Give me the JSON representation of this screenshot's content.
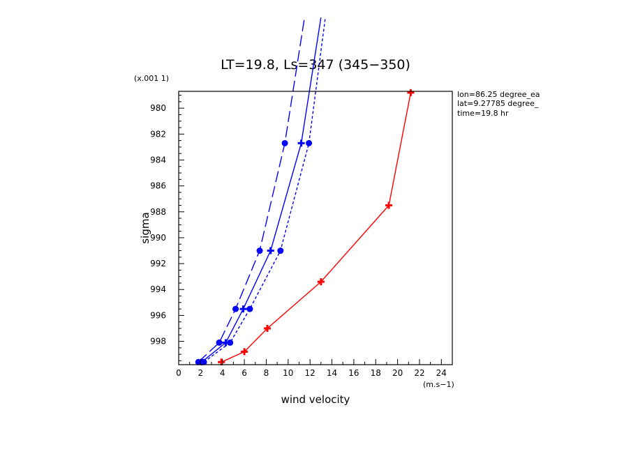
{
  "chart_data": {
    "type": "line",
    "title": "LT=19.8, Ls=347 (345−350)",
    "xlabel": "wind velocity",
    "ylabel": "sigma",
    "x_unit": "(m.s−1)",
    "y_scale": "(x.001 1)",
    "xlim": [
      0,
      25
    ],
    "ylim": [
      999.8,
      978.7
    ],
    "x_ticks": [
      "0",
      "2",
      "4",
      "6",
      "8",
      "10",
      "12",
      "14",
      "16",
      "18",
      "20",
      "22",
      "24"
    ],
    "y_ticks": [
      "980",
      "982",
      "984",
      "986",
      "988",
      "990",
      "992",
      "994",
      "996",
      "998"
    ],
    "info": [
      "lon=86.25 degree_ea",
      "lat=9.27785 degree_",
      "time=19.8 hr"
    ],
    "grid": false,
    "series": [
      {
        "style": "dashed",
        "color": "#0000ff",
        "marker": "circle",
        "x": [
          1.8,
          3.7,
          5.2,
          7.4,
          9.7,
          11.5
        ],
        "y": [
          999.6,
          998.1,
          995.5,
          991.0,
          982.7,
          973.0
        ]
      },
      {
        "style": "solid",
        "color": "#0000ff",
        "marker": "plus",
        "x": [
          2.1,
          4.3,
          5.9,
          8.4,
          11.2,
          13.0
        ],
        "y": [
          999.6,
          998.1,
          995.5,
          991.0,
          982.7,
          973.0
        ]
      },
      {
        "style": "dotted",
        "color": "#0000ff",
        "marker": "circle",
        "x": [
          2.3,
          4.7,
          6.5,
          9.3,
          11.9,
          13.4
        ],
        "y": [
          999.6,
          998.1,
          995.5,
          991.0,
          982.7,
          973.0
        ]
      },
      {
        "style": "solid",
        "color": "#ff0000",
        "marker": "plus",
        "x": [
          3.9,
          6.0,
          8.1,
          13.0,
          19.2,
          21.2
        ],
        "y": [
          999.6,
          998.8,
          997.0,
          993.4,
          987.5,
          978.8
        ]
      }
    ]
  }
}
